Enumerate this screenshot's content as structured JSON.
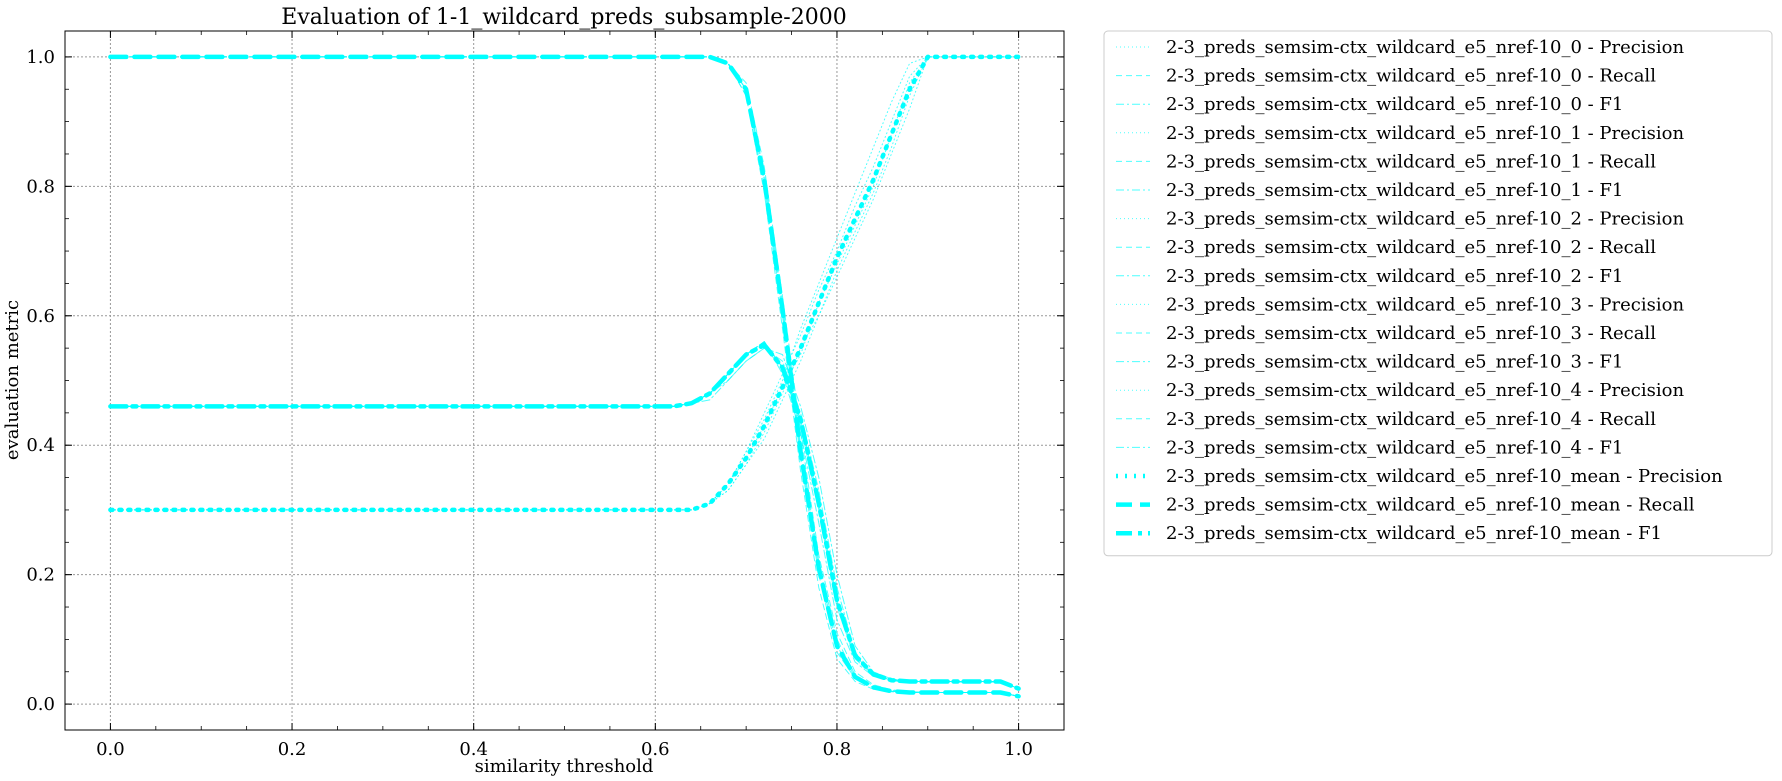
{
  "chart_data": {
    "type": "line",
    "title": "Evaluation of 1-1_wildcard_preds_subsample-2000",
    "xlabel": "similarity threshold",
    "ylabel": "evaluation metric",
    "xlim": [
      -0.05,
      1.05
    ],
    "ylim": [
      -0.04,
      1.04
    ],
    "xticks": [
      "0.0",
      "0.2",
      "0.4",
      "0.6",
      "0.8",
      "1.0"
    ],
    "yticks": [
      "0.0",
      "0.2",
      "0.4",
      "0.6",
      "0.8",
      "1.0"
    ],
    "grid": true,
    "legend_position": "outside right",
    "color": "#00ffff",
    "x": [
      0.0,
      0.05,
      0.1,
      0.15,
      0.2,
      0.25,
      0.3,
      0.35,
      0.4,
      0.45,
      0.5,
      0.55,
      0.6,
      0.62,
      0.64,
      0.66,
      0.68,
      0.7,
      0.72,
      0.74,
      0.76,
      0.78,
      0.8,
      0.82,
      0.84,
      0.86,
      0.88,
      0.9,
      0.92,
      0.94,
      0.96,
      0.98,
      1.0
    ],
    "series": [
      {
        "name": "2-3_preds_semsim-ctx_wildcard_e5_nref-10_0 - Precision",
        "style": "dotted",
        "values": [
          0.3,
          0.3,
          0.3,
          0.3,
          0.3,
          0.3,
          0.3,
          0.3,
          0.3,
          0.3,
          0.3,
          0.3,
          0.3,
          0.3,
          0.3,
          0.31,
          0.34,
          0.39,
          0.44,
          0.5,
          0.58,
          0.65,
          0.72,
          0.79,
          0.86,
          0.93,
          0.99,
          1.0,
          1.0,
          1.0,
          1.0,
          1.0,
          1.0
        ]
      },
      {
        "name": "2-3_preds_semsim-ctx_wildcard_e5_nref-10_0 - Recall",
        "style": "dashed",
        "values": [
          1.0,
          1.0,
          1.0,
          1.0,
          1.0,
          1.0,
          1.0,
          1.0,
          1.0,
          1.0,
          1.0,
          1.0,
          1.0,
          1.0,
          1.0,
          1.0,
          0.99,
          0.94,
          0.8,
          0.6,
          0.38,
          0.2,
          0.08,
          0.04,
          0.025,
          0.02,
          0.018,
          0.018,
          0.018,
          0.018,
          0.018,
          0.018,
          0.012
        ]
      },
      {
        "name": "2-3_preds_semsim-ctx_wildcard_e5_nref-10_0 - F1",
        "style": "dashdot",
        "values": [
          0.46,
          0.46,
          0.46,
          0.46,
          0.46,
          0.46,
          0.46,
          0.46,
          0.46,
          0.46,
          0.46,
          0.46,
          0.46,
          0.46,
          0.465,
          0.48,
          0.51,
          0.54,
          0.56,
          0.52,
          0.43,
          0.3,
          0.15,
          0.07,
          0.045,
          0.037,
          0.035,
          0.035,
          0.035,
          0.035,
          0.035,
          0.035,
          0.024
        ]
      },
      {
        "name": "2-3_preds_semsim-ctx_wildcard_e5_nref-10_1 - Precision",
        "style": "dotted",
        "values": [
          0.3,
          0.3,
          0.3,
          0.3,
          0.3,
          0.3,
          0.3,
          0.3,
          0.3,
          0.3,
          0.3,
          0.3,
          0.3,
          0.3,
          0.3,
          0.31,
          0.33,
          0.37,
          0.42,
          0.48,
          0.55,
          0.6,
          0.66,
          0.72,
          0.78,
          0.85,
          0.92,
          1.0,
          1.0,
          1.0,
          1.0,
          1.0,
          1.0
        ]
      },
      {
        "name": "2-3_preds_semsim-ctx_wildcard_e5_nref-10_1 - Recall",
        "style": "dashed",
        "values": [
          1.0,
          1.0,
          1.0,
          1.0,
          1.0,
          1.0,
          1.0,
          1.0,
          1.0,
          1.0,
          1.0,
          1.0,
          1.0,
          1.0,
          1.0,
          1.0,
          0.99,
          0.95,
          0.82,
          0.62,
          0.4,
          0.22,
          0.1,
          0.045,
          0.028,
          0.021,
          0.019,
          0.018,
          0.018,
          0.018,
          0.018,
          0.018,
          0.012
        ]
      },
      {
        "name": "2-3_preds_semsim-ctx_wildcard_e5_nref-10_1 - F1",
        "style": "dashdot",
        "values": [
          0.46,
          0.46,
          0.46,
          0.46,
          0.46,
          0.46,
          0.46,
          0.46,
          0.46,
          0.46,
          0.46,
          0.46,
          0.46,
          0.46,
          0.465,
          0.48,
          0.5,
          0.53,
          0.55,
          0.53,
          0.45,
          0.33,
          0.18,
          0.08,
          0.048,
          0.038,
          0.035,
          0.035,
          0.035,
          0.035,
          0.035,
          0.035,
          0.024
        ]
      },
      {
        "name": "2-3_preds_semsim-ctx_wildcard_e5_nref-10_2 - Precision",
        "style": "dotted",
        "values": [
          0.3,
          0.3,
          0.3,
          0.3,
          0.3,
          0.3,
          0.3,
          0.3,
          0.3,
          0.3,
          0.3,
          0.3,
          0.3,
          0.3,
          0.3,
          0.31,
          0.34,
          0.38,
          0.43,
          0.49,
          0.54,
          0.62,
          0.68,
          0.74,
          0.8,
          0.88,
          0.96,
          1.0,
          1.0,
          1.0,
          1.0,
          1.0,
          1.0
        ]
      },
      {
        "name": "2-3_preds_semsim-ctx_wildcard_e5_nref-10_2 - Recall",
        "style": "dashed",
        "values": [
          1.0,
          1.0,
          1.0,
          1.0,
          1.0,
          1.0,
          1.0,
          1.0,
          1.0,
          1.0,
          1.0,
          1.0,
          1.0,
          1.0,
          1.0,
          1.0,
          0.99,
          0.94,
          0.79,
          0.58,
          0.36,
          0.18,
          0.07,
          0.035,
          0.023,
          0.019,
          0.018,
          0.018,
          0.018,
          0.018,
          0.018,
          0.018,
          0.012
        ]
      },
      {
        "name": "2-3_preds_semsim-ctx_wildcard_e5_nref-10_2 - F1",
        "style": "dashdot",
        "values": [
          0.46,
          0.46,
          0.46,
          0.46,
          0.46,
          0.46,
          0.46,
          0.46,
          0.46,
          0.46,
          0.46,
          0.46,
          0.46,
          0.46,
          0.465,
          0.48,
          0.51,
          0.54,
          0.56,
          0.51,
          0.42,
          0.28,
          0.13,
          0.065,
          0.043,
          0.036,
          0.034,
          0.034,
          0.034,
          0.034,
          0.034,
          0.034,
          0.023
        ]
      },
      {
        "name": "2-3_preds_semsim-ctx_wildcard_e5_nref-10_3 - Precision",
        "style": "dotted",
        "values": [
          0.3,
          0.3,
          0.3,
          0.3,
          0.3,
          0.3,
          0.3,
          0.3,
          0.3,
          0.3,
          0.3,
          0.3,
          0.3,
          0.3,
          0.3,
          0.31,
          0.33,
          0.37,
          0.41,
          0.47,
          0.53,
          0.6,
          0.67,
          0.73,
          0.79,
          0.86,
          0.94,
          1.0,
          1.0,
          1.0,
          1.0,
          1.0,
          1.0
        ]
      },
      {
        "name": "2-3_preds_semsim-ctx_wildcard_e5_nref-10_3 - Recall",
        "style": "dashed",
        "values": [
          1.0,
          1.0,
          1.0,
          1.0,
          1.0,
          1.0,
          1.0,
          1.0,
          1.0,
          1.0,
          1.0,
          1.0,
          1.0,
          1.0,
          1.0,
          1.0,
          0.99,
          0.96,
          0.83,
          0.63,
          0.42,
          0.23,
          0.11,
          0.05,
          0.03,
          0.022,
          0.019,
          0.018,
          0.018,
          0.018,
          0.018,
          0.018,
          0.012
        ]
      },
      {
        "name": "2-3_preds_semsim-ctx_wildcard_e5_nref-10_3 - F1",
        "style": "dashdot",
        "values": [
          0.46,
          0.46,
          0.46,
          0.46,
          0.46,
          0.46,
          0.46,
          0.46,
          0.46,
          0.46,
          0.46,
          0.46,
          0.46,
          0.46,
          0.465,
          0.47,
          0.5,
          0.53,
          0.55,
          0.54,
          0.46,
          0.35,
          0.2,
          0.09,
          0.05,
          0.039,
          0.035,
          0.035,
          0.035,
          0.035,
          0.035,
          0.035,
          0.024
        ]
      },
      {
        "name": "2-3_preds_semsim-ctx_wildcard_e5_nref-10_4 - Precision",
        "style": "dotted",
        "values": [
          0.3,
          0.3,
          0.3,
          0.3,
          0.3,
          0.3,
          0.3,
          0.3,
          0.3,
          0.3,
          0.3,
          0.3,
          0.3,
          0.3,
          0.3,
          0.31,
          0.34,
          0.39,
          0.45,
          0.51,
          0.57,
          0.64,
          0.7,
          0.77,
          0.83,
          0.9,
          0.97,
          1.0,
          1.0,
          1.0,
          1.0,
          1.0,
          1.0
        ]
      },
      {
        "name": "2-3_preds_semsim-ctx_wildcard_e5_nref-10_4 - Recall",
        "style": "dashed",
        "values": [
          1.0,
          1.0,
          1.0,
          1.0,
          1.0,
          1.0,
          1.0,
          1.0,
          1.0,
          1.0,
          1.0,
          1.0,
          1.0,
          1.0,
          1.0,
          1.0,
          0.99,
          0.95,
          0.81,
          0.61,
          0.39,
          0.21,
          0.09,
          0.042,
          0.026,
          0.02,
          0.018,
          0.018,
          0.018,
          0.018,
          0.018,
          0.018,
          0.012
        ]
      },
      {
        "name": "2-3_preds_semsim-ctx_wildcard_e5_nref-10_4 - F1",
        "style": "dashdot",
        "values": [
          0.46,
          0.46,
          0.46,
          0.46,
          0.46,
          0.46,
          0.46,
          0.46,
          0.46,
          0.46,
          0.46,
          0.46,
          0.46,
          0.46,
          0.465,
          0.48,
          0.51,
          0.54,
          0.56,
          0.52,
          0.44,
          0.31,
          0.16,
          0.075,
          0.046,
          0.037,
          0.035,
          0.035,
          0.035,
          0.035,
          0.035,
          0.035,
          0.024
        ]
      },
      {
        "name": "2-3_preds_semsim-ctx_wildcard_e5_nref-10_mean - Precision",
        "style": "dotted-bold",
        "values": [
          0.3,
          0.3,
          0.3,
          0.3,
          0.3,
          0.3,
          0.3,
          0.3,
          0.3,
          0.3,
          0.3,
          0.3,
          0.3,
          0.3,
          0.3,
          0.31,
          0.34,
          0.38,
          0.43,
          0.49,
          0.55,
          0.62,
          0.69,
          0.75,
          0.81,
          0.88,
          0.95,
          1.0,
          1.0,
          1.0,
          1.0,
          1.0,
          1.0
        ]
      },
      {
        "name": "2-3_preds_semsim-ctx_wildcard_e5_nref-10_mean - Recall",
        "style": "dashed-bold",
        "values": [
          1.0,
          1.0,
          1.0,
          1.0,
          1.0,
          1.0,
          1.0,
          1.0,
          1.0,
          1.0,
          1.0,
          1.0,
          1.0,
          1.0,
          1.0,
          1.0,
          0.99,
          0.95,
          0.81,
          0.61,
          0.39,
          0.21,
          0.09,
          0.042,
          0.026,
          0.02,
          0.018,
          0.018,
          0.018,
          0.018,
          0.018,
          0.018,
          0.012
        ]
      },
      {
        "name": "2-3_preds_semsim-ctx_wildcard_e5_nref-10_mean - F1",
        "style": "dashdot-bold",
        "values": [
          0.46,
          0.46,
          0.46,
          0.46,
          0.46,
          0.46,
          0.46,
          0.46,
          0.46,
          0.46,
          0.46,
          0.46,
          0.46,
          0.46,
          0.465,
          0.48,
          0.51,
          0.54,
          0.555,
          0.52,
          0.44,
          0.31,
          0.16,
          0.075,
          0.046,
          0.037,
          0.035,
          0.035,
          0.035,
          0.035,
          0.035,
          0.035,
          0.024
        ]
      }
    ]
  }
}
